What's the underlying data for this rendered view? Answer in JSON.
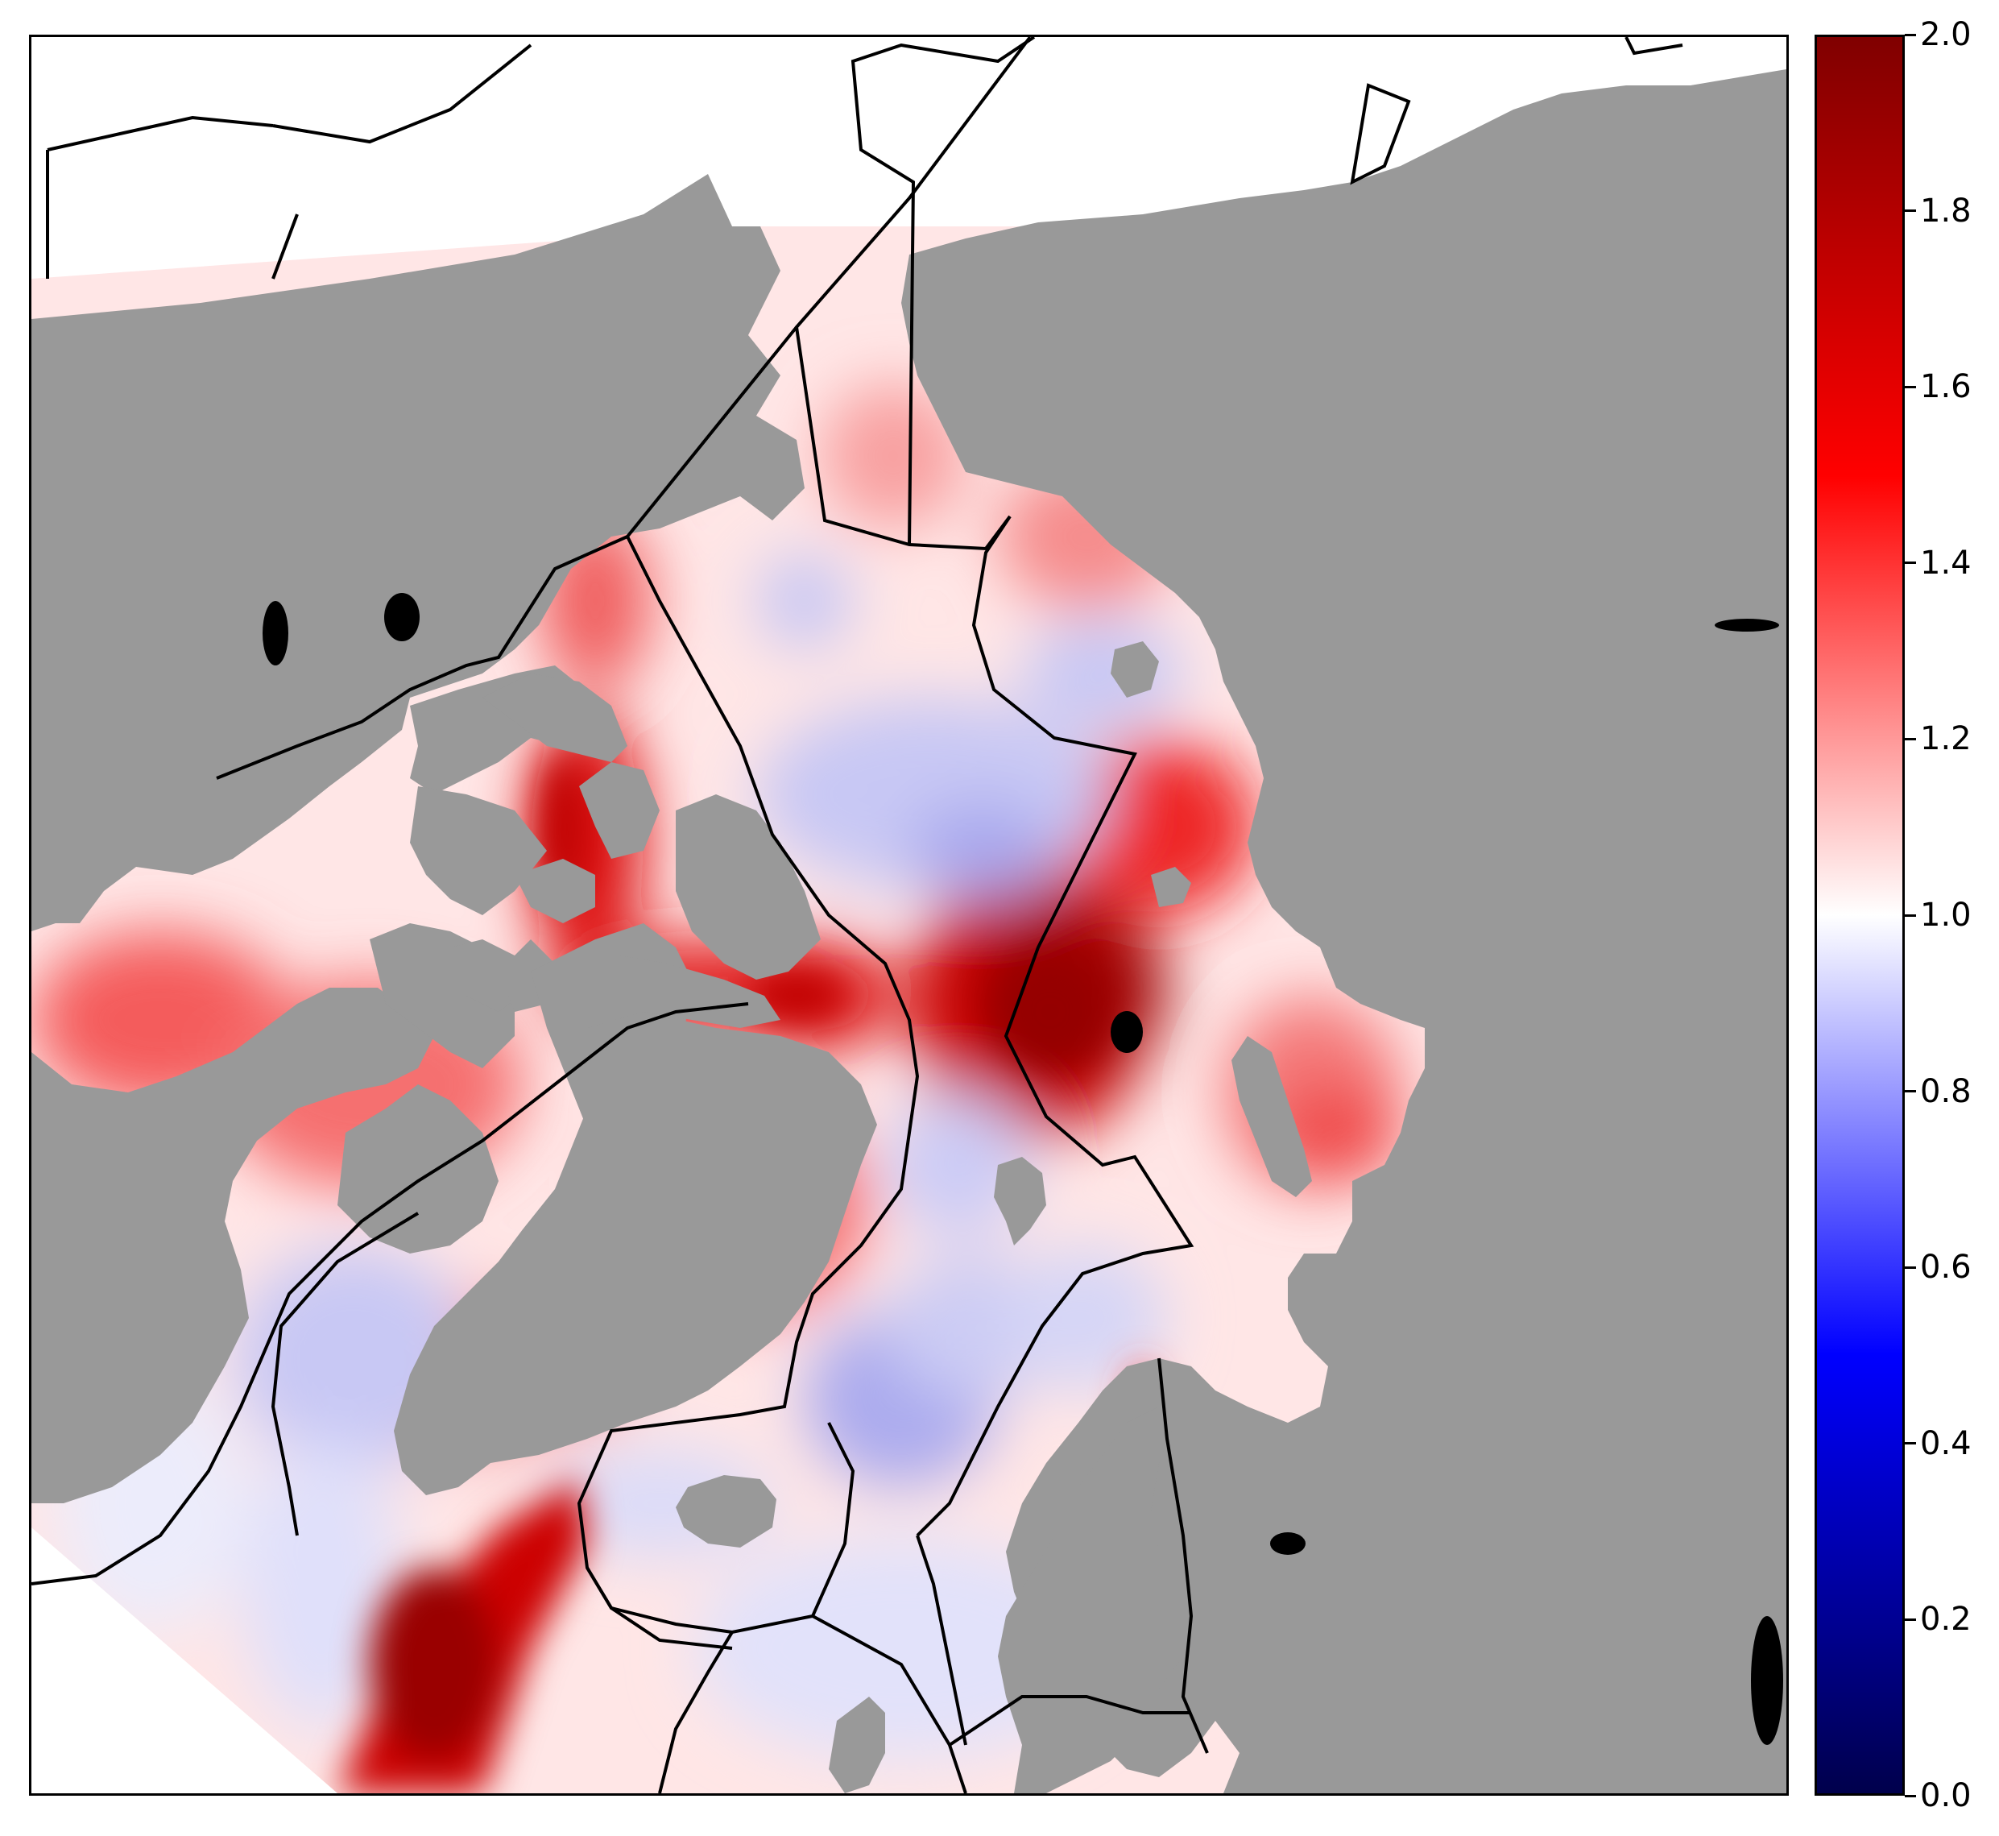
{
  "map": {
    "description_colors": {
      "land": "#999999",
      "sea_outside_data": "#ffffff",
      "boundary_lines": "#000000",
      "lakes": "#000000"
    }
  },
  "colorbar": {
    "min": 0.0,
    "max": 2.0,
    "ticks": [
      "0.0",
      "0.2",
      "0.4",
      "0.6",
      "0.8",
      "1.0",
      "1.2",
      "1.4",
      "1.6",
      "1.8",
      "2.0"
    ],
    "colormap": "seismic",
    "colors": {
      "low": "#00004c",
      "mid_low": "#0000ff",
      "center": "#ffffff",
      "mid_high": "#ff0000",
      "high": "#800000"
    }
  }
}
